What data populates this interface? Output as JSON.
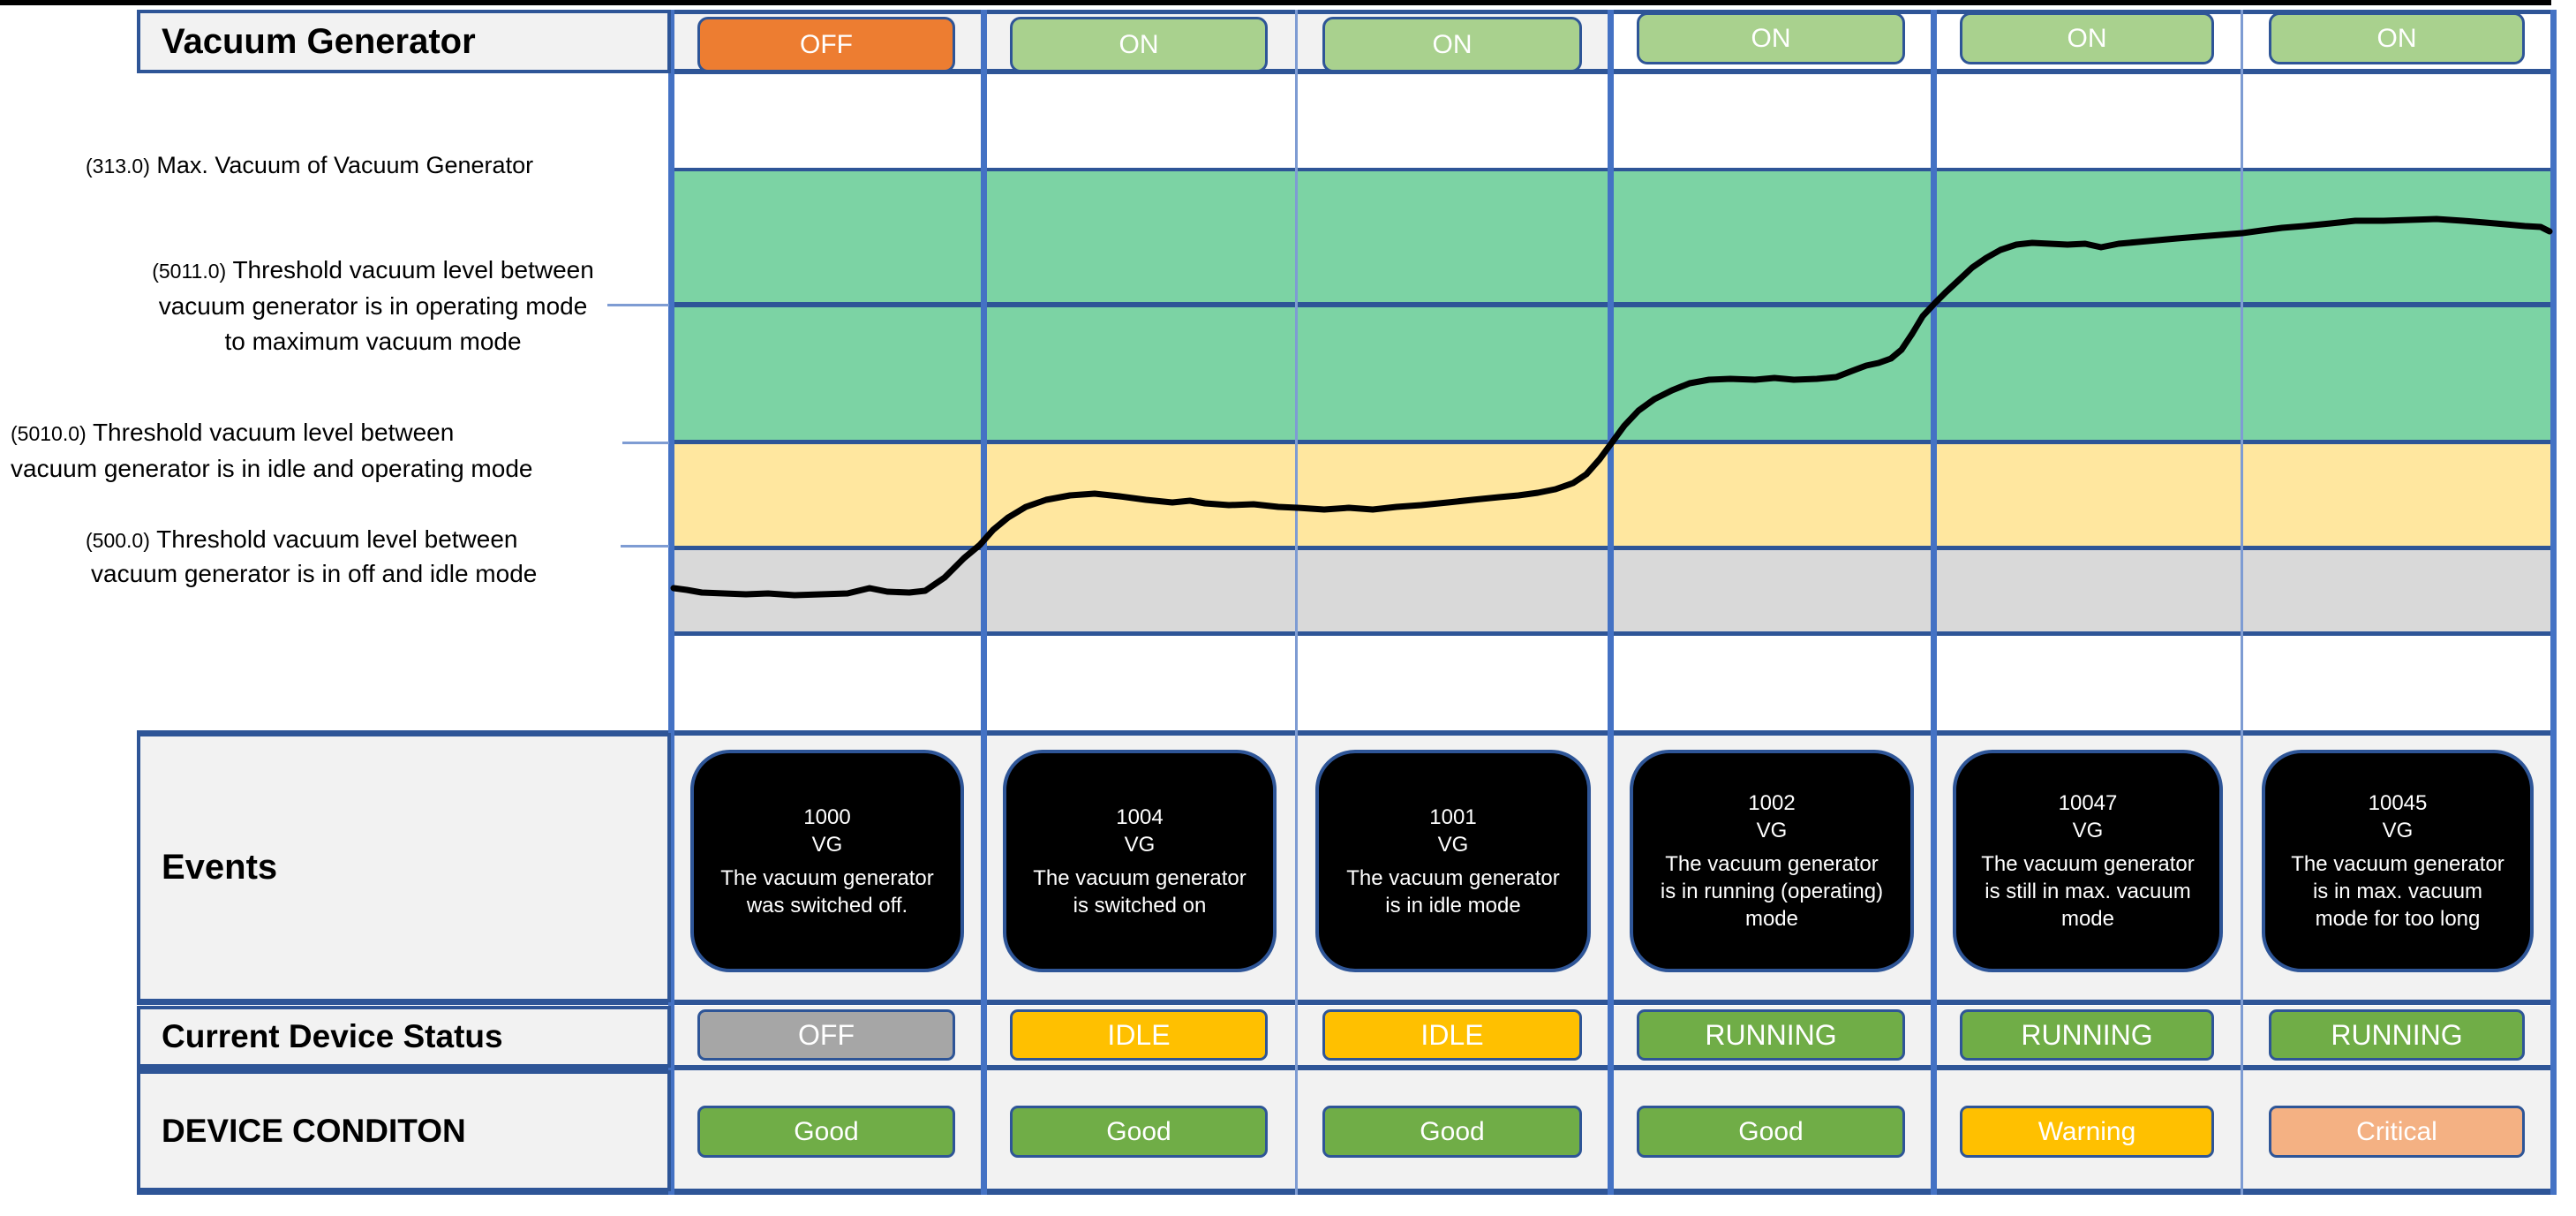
{
  "header": {
    "title": "Vacuum Generator",
    "states": [
      {
        "label": "OFF",
        "color": "#ED7D31"
      },
      {
        "label": "ON",
        "color": "#A9D18E"
      },
      {
        "label": "ON",
        "color": "#A9D18E"
      },
      {
        "label": "ON",
        "color": "#A9D18E"
      },
      {
        "label": "ON",
        "color": "#A9D18E"
      },
      {
        "label": "ON",
        "color": "#A9D18E"
      }
    ]
  },
  "thresholds": [
    {
      "value": "(313.0)",
      "lines": [
        "Max. Vacuum of Vacuum Generator"
      ]
    },
    {
      "value": "(5011.0)",
      "lines": [
        "Threshold vacuum level between",
        "vacuum generator is in operating mode",
        "to maximum vacuum mode"
      ]
    },
    {
      "value": "(5010.0)",
      "lines": [
        "Threshold vacuum level between",
        "vacuum generator is in idle and operating mode"
      ]
    },
    {
      "value": "(500.0)",
      "lines": [
        "Threshold vacuum level between",
        "vacuum generator is in off and idle mode"
      ]
    }
  ],
  "bands": {
    "max_vacuum_zone": "#7CD3A4",
    "operating_zone": "#7CD3A4",
    "idle_zone": "#FFE79F",
    "off_zone": "#D9D9D9"
  },
  "events": {
    "label": "Events",
    "items": [
      {
        "id": "1000",
        "source": "VG",
        "description": "The vacuum generator was switched off."
      },
      {
        "id": "1004",
        "source": "VG",
        "description": "The vacuum generator is switched on"
      },
      {
        "id": "1001",
        "source": "VG",
        "description": "The vacuum generator is in idle mode"
      },
      {
        "id": "1002",
        "source": "VG",
        "description": "The vacuum generator is in running (operating) mode"
      },
      {
        "id": "10047",
        "source": "VG",
        "description": "The vacuum generator is still in max. vacuum mode"
      },
      {
        "id": "10045",
        "source": "VG",
        "description": "The vacuum generator is in max. vacuum mode for too long"
      }
    ]
  },
  "status": {
    "label": "Current Device Status",
    "values": [
      {
        "label": "OFF",
        "color": "#A6A6A6"
      },
      {
        "label": "IDLE",
        "color": "#FFC000"
      },
      {
        "label": "IDLE",
        "color": "#FFC000"
      },
      {
        "label": "RUNNING",
        "color": "#70AD47"
      },
      {
        "label": "RUNNING",
        "color": "#70AD47"
      },
      {
        "label": "RUNNING",
        "color": "#70AD47"
      }
    ]
  },
  "condition": {
    "label": "DEVICE CONDITON",
    "values": [
      {
        "label": "Good",
        "color": "#70AD47"
      },
      {
        "label": "Good",
        "color": "#70AD47"
      },
      {
        "label": "Good",
        "color": "#70AD47"
      },
      {
        "label": "Good",
        "color": "#70AD47"
      },
      {
        "label": "Warning",
        "color": "#FFC000"
      },
      {
        "label": "Critical",
        "color": "#F4B183"
      }
    ]
  },
  "curve": {
    "color": "#000000",
    "stroke_width": 7,
    "points": [
      [
        763,
        666
      ],
      [
        778,
        668
      ],
      [
        795,
        671
      ],
      [
        820,
        672
      ],
      [
        845,
        673
      ],
      [
        870,
        672
      ],
      [
        900,
        674
      ],
      [
        930,
        673
      ],
      [
        960,
        672
      ],
      [
        985,
        666
      ],
      [
        1005,
        670
      ],
      [
        1030,
        671
      ],
      [
        1048,
        669
      ],
      [
        1070,
        654
      ],
      [
        1092,
        632
      ],
      [
        1110,
        617
      ],
      [
        1125,
        600
      ],
      [
        1142,
        586
      ],
      [
        1162,
        574
      ],
      [
        1185,
        566
      ],
      [
        1212,
        561
      ],
      [
        1240,
        559
      ],
      [
        1268,
        562
      ],
      [
        1298,
        566
      ],
      [
        1328,
        569
      ],
      [
        1348,
        567
      ],
      [
        1365,
        570
      ],
      [
        1392,
        572
      ],
      [
        1420,
        571
      ],
      [
        1448,
        574
      ],
      [
        1470,
        575
      ],
      [
        1500,
        577
      ],
      [
        1528,
        575
      ],
      [
        1555,
        577
      ],
      [
        1582,
        574
      ],
      [
        1610,
        572
      ],
      [
        1640,
        569
      ],
      [
        1668,
        566
      ],
      [
        1698,
        563
      ],
      [
        1720,
        561
      ],
      [
        1742,
        558
      ],
      [
        1762,
        554
      ],
      [
        1782,
        547
      ],
      [
        1797,
        537
      ],
      [
        1812,
        520
      ],
      [
        1826,
        501
      ],
      [
        1840,
        482
      ],
      [
        1856,
        465
      ],
      [
        1874,
        452
      ],
      [
        1894,
        442
      ],
      [
        1914,
        434
      ],
      [
        1936,
        430
      ],
      [
        1960,
        429
      ],
      [
        1988,
        430
      ],
      [
        2010,
        428
      ],
      [
        2032,
        430
      ],
      [
        2058,
        429
      ],
      [
        2080,
        427
      ],
      [
        2098,
        420
      ],
      [
        2114,
        414
      ],
      [
        2128,
        411
      ],
      [
        2142,
        406
      ],
      [
        2154,
        396
      ],
      [
        2166,
        378
      ],
      [
        2178,
        358
      ],
      [
        2192,
        343
      ],
      [
        2204,
        331
      ],
      [
        2218,
        318
      ],
      [
        2234,
        303
      ],
      [
        2250,
        292
      ],
      [
        2266,
        283
      ],
      [
        2284,
        277
      ],
      [
        2302,
        275
      ],
      [
        2322,
        276
      ],
      [
        2342,
        277
      ],
      [
        2362,
        276
      ],
      [
        2380,
        280
      ],
      [
        2400,
        276
      ],
      [
        2422,
        274
      ],
      [
        2444,
        272
      ],
      [
        2466,
        270
      ],
      [
        2490,
        268
      ],
      [
        2515,
        266
      ],
      [
        2540,
        264
      ],
      [
        2562,
        261
      ],
      [
        2585,
        258
      ],
      [
        2610,
        256
      ],
      [
        2640,
        253
      ],
      [
        2668,
        250
      ],
      [
        2700,
        250
      ],
      [
        2730,
        249
      ],
      [
        2760,
        248
      ],
      [
        2790,
        250
      ],
      [
        2815,
        252
      ],
      [
        2838,
        254
      ],
      [
        2860,
        256
      ],
      [
        2878,
        257
      ],
      [
        2888,
        262
      ]
    ]
  }
}
